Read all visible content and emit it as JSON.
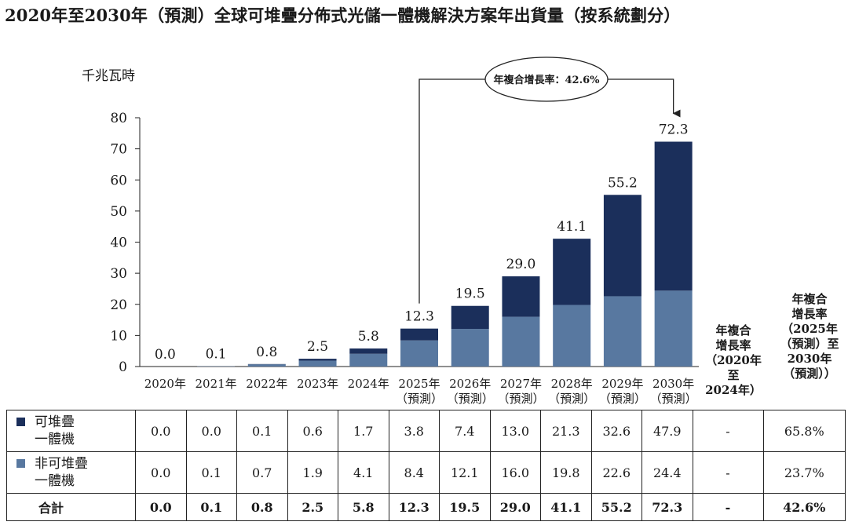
{
  "title": "2020年至2030年（預測）全球可堆疊分佈式光儲一體機解決方案年出貨量（按系統劃分）",
  "colors": {
    "stackable": "#1b2f5b",
    "non_stackable": "#5878a0",
    "axis": "#222222"
  },
  "chart_data": {
    "type": "bar",
    "stacked": true,
    "unit": "千兆瓦時",
    "categories": [
      {
        "year": "2020年",
        "note": ""
      },
      {
        "year": "2021年",
        "note": ""
      },
      {
        "year": "2022年",
        "note": ""
      },
      {
        "year": "2023年",
        "note": ""
      },
      {
        "year": "2024年",
        "note": ""
      },
      {
        "year": "2025年",
        "note": "（預測）"
      },
      {
        "year": "2026年",
        "note": "（預測）"
      },
      {
        "year": "2027年",
        "note": "（預測）"
      },
      {
        "year": "2028年",
        "note": "（預測）"
      },
      {
        "year": "2029年",
        "note": "（預測）"
      },
      {
        "year": "2030年",
        "note": "（預測）"
      }
    ],
    "series": [
      {
        "name": "非可堆疊一體機",
        "color_key": "non_stackable",
        "values": [
          0.0,
          0.1,
          0.7,
          1.9,
          4.1,
          8.4,
          12.1,
          16.0,
          19.8,
          22.6,
          24.4
        ]
      },
      {
        "name": "可堆疊一體機",
        "color_key": "stackable",
        "values": [
          0.0,
          0.0,
          0.1,
          0.6,
          1.7,
          3.8,
          7.4,
          13.0,
          21.3,
          32.6,
          47.9
        ]
      }
    ],
    "totals": [
      "0.0",
      "0.1",
      "0.8",
      "2.5",
      "5.8",
      "12.3",
      "19.5",
      "29.0",
      "41.1",
      "55.2",
      "72.3"
    ],
    "yticks": [
      0,
      10,
      20,
      30,
      40,
      50,
      60,
      70,
      80
    ],
    "ylim": [
      0,
      80
    ],
    "annotation": {
      "text": "年複合增長率：42.6%",
      "from_index": 5,
      "to_index": 10
    }
  },
  "cagr_headers": {
    "period1": [
      "年複合",
      "增長率",
      "（2020年至",
      "2024年）"
    ],
    "period2": [
      "年複合",
      "增長率",
      "（2025年",
      "（預測）至",
      "2030年",
      "（預測））"
    ]
  },
  "table": {
    "rows": [
      {
        "label": [
          "可堆疊",
          "一體機"
        ],
        "color_key": "stackable",
        "cells": [
          "0.0",
          "0.0",
          "0.1",
          "0.6",
          "1.7",
          "3.8",
          "7.4",
          "13.0",
          "21.3",
          "32.6",
          "47.9"
        ],
        "cagr1": "-",
        "cagr2": "65.8%"
      },
      {
        "label": [
          "非可堆疊",
          "一體機"
        ],
        "color_key": "non_stackable",
        "cells": [
          "0.0",
          "0.1",
          "0.7",
          "1.9",
          "4.1",
          "8.4",
          "12.1",
          "16.0",
          "19.8",
          "22.6",
          "24.4"
        ],
        "cagr1": "-",
        "cagr2": "23.7%"
      }
    ],
    "total": {
      "label": "合計",
      "cells": [
        "0.0",
        "0.1",
        "0.8",
        "2.5",
        "5.8",
        "12.3",
        "19.5",
        "29.0",
        "41.1",
        "55.2",
        "72.3"
      ],
      "cagr1": "-",
      "cagr2": "42.6%"
    }
  }
}
